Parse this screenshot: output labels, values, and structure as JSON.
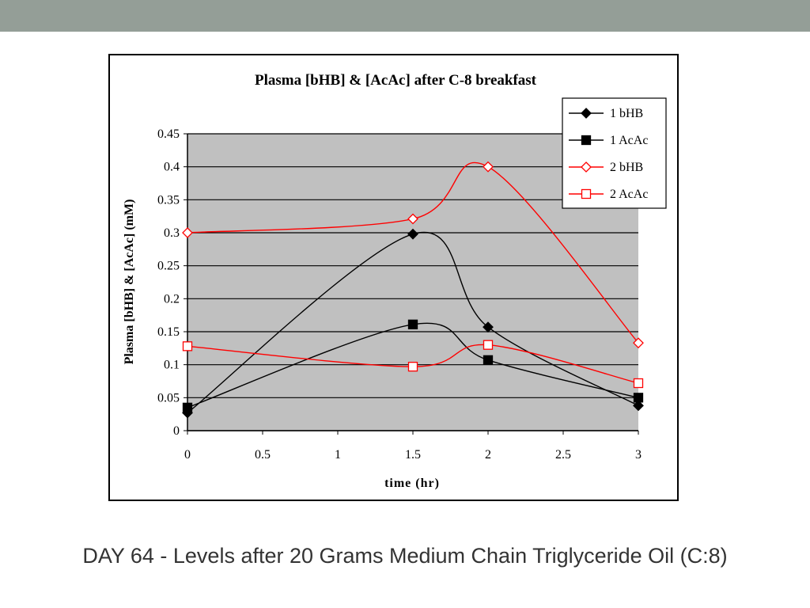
{
  "slide": {
    "caption": "DAY 64 -  Levels after 20 Grams Medium Chain Triglyceride Oil (C:8)",
    "band_color": "#949e97"
  },
  "chart_data": {
    "type": "line",
    "title": "Plasma [bHB] & [AcAc] after C-8 breakfast",
    "xlabel": "time (hr)",
    "ylabel": "Plasma [bHB] & [AcAc] (mM)",
    "xlim": [
      0,
      3
    ],
    "ylim": [
      0,
      0.45
    ],
    "x_ticks": [
      0,
      0.5,
      1,
      1.5,
      2,
      2.5,
      3
    ],
    "x_tick_labels": [
      "0",
      "0.5",
      "1",
      "1.5",
      "2",
      "2.5",
      "3"
    ],
    "y_ticks": [
      0,
      0.05,
      0.1,
      0.15,
      0.2,
      0.25,
      0.3,
      0.35,
      0.4,
      0.45
    ],
    "y_tick_labels": [
      "0",
      "0.05",
      "0.1",
      "0.15",
      "0.2",
      "0.25",
      "0.3",
      "0.35",
      "0.4",
      "0.45"
    ],
    "grid": "horizontal",
    "plot_background": "#c0c0c0",
    "legend_position": "top-right",
    "smooth": true,
    "series": [
      {
        "name": "1 bHB",
        "color": "#000000",
        "marker": "diamond-filled",
        "x": [
          0,
          1.5,
          2,
          3
        ],
        "y": [
          0.027,
          0.298,
          0.157,
          0.038
        ]
      },
      {
        "name": "1 AcAc",
        "color": "#000000",
        "marker": "square-filled",
        "x": [
          0,
          1.5,
          2,
          3
        ],
        "y": [
          0.035,
          0.161,
          0.107,
          0.05
        ]
      },
      {
        "name": "2 bHB",
        "color": "#ff0000",
        "marker": "diamond-open",
        "x": [
          0,
          1.5,
          2,
          3
        ],
        "y": [
          0.3,
          0.321,
          0.4,
          0.133
        ]
      },
      {
        "name": "2 AcAc",
        "color": "#ff0000",
        "marker": "square-open",
        "x": [
          0,
          1.5,
          2,
          3
        ],
        "y": [
          0.128,
          0.097,
          0.13,
          0.072
        ]
      }
    ]
  }
}
